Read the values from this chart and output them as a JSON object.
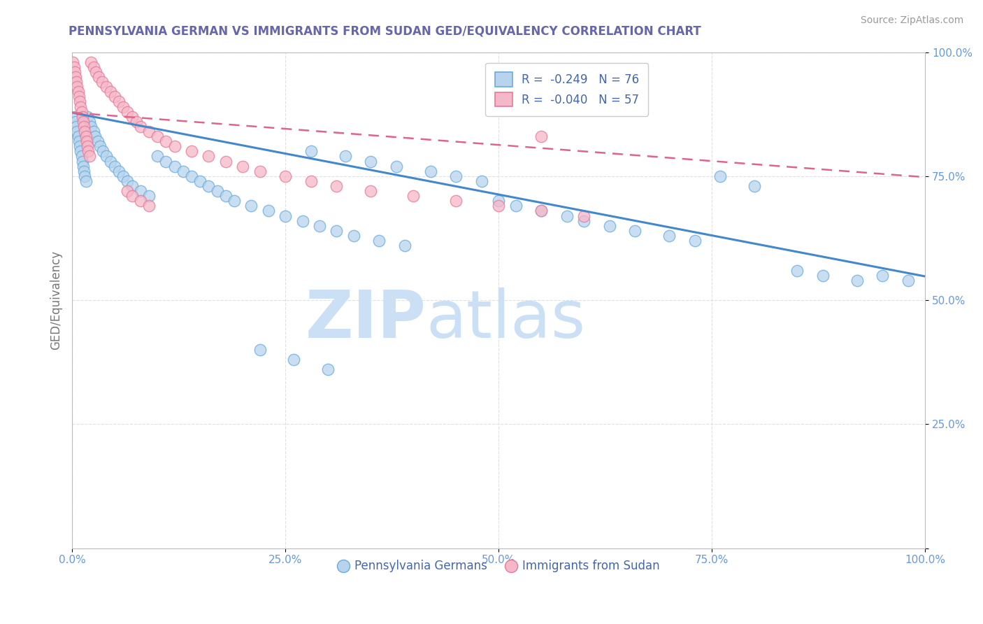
{
  "title": "PENNSYLVANIA GERMAN VS IMMIGRANTS FROM SUDAN GED/EQUIVALENCY CORRELATION CHART",
  "source": "Source: ZipAtlas.com",
  "ylabel": "GED/Equivalency",
  "watermark_zip": "ZIP",
  "watermark_atlas": "atlas",
  "xlim": [
    0,
    1.0
  ],
  "ylim": [
    0,
    1.0
  ],
  "xtick_vals": [
    0.0,
    0.25,
    0.5,
    0.75,
    1.0
  ],
  "xtick_labels": [
    "0.0%",
    "25.0%",
    "50.0%",
    "75.0%",
    "100.0%"
  ],
  "ytick_vals": [
    0.0,
    0.25,
    0.5,
    0.75,
    1.0
  ],
  "ytick_labels": [
    "",
    "25.0%",
    "50.0%",
    "75.0%",
    "100.0%"
  ],
  "blue_R": -0.249,
  "blue_N": 76,
  "pink_R": -0.04,
  "pink_N": 57,
  "blue_fill": "#b8d4ed",
  "pink_fill": "#f5b8c8",
  "blue_edge": "#6aabdd",
  "pink_edge": "#e87898",
  "blue_line_color": "#4488cc",
  "pink_line_color": "#dd6688",
  "blue_trend_start_y": 0.878,
  "blue_trend_end_y": 0.548,
  "pink_trend_start_y": 0.878,
  "pink_trend_end_y": 0.748,
  "title_color": "#6666aa",
  "axis_color": "#bbbbbb",
  "tick_color": "#6699dd",
  "grid_color": "#e0e0e0",
  "watermark_color": "#cce0f5",
  "legend_text_color": "#4466aa",
  "ylabel_color": "#777777",
  "source_color": "#999999",
  "blue_scatter_x": [
    0.003,
    0.004,
    0.005,
    0.006,
    0.007,
    0.008,
    0.009,
    0.01,
    0.011,
    0.012,
    0.013,
    0.014,
    0.015,
    0.016,
    0.018,
    0.02,
    0.022,
    0.025,
    0.027,
    0.03,
    0.033,
    0.036,
    0.04,
    0.045,
    0.05,
    0.055,
    0.06,
    0.065,
    0.07,
    0.08,
    0.09,
    0.1,
    0.11,
    0.12,
    0.13,
    0.14,
    0.15,
    0.16,
    0.17,
    0.18,
    0.19,
    0.21,
    0.23,
    0.25,
    0.27,
    0.29,
    0.31,
    0.33,
    0.36,
    0.39,
    0.28,
    0.32,
    0.35,
    0.38,
    0.42,
    0.45,
    0.48,
    0.5,
    0.52,
    0.55,
    0.58,
    0.6,
    0.63,
    0.66,
    0.7,
    0.73,
    0.76,
    0.8,
    0.85,
    0.88,
    0.92,
    0.95,
    0.98,
    0.22,
    0.26,
    0.3
  ],
  "blue_scatter_y": [
    0.87,
    0.86,
    0.85,
    0.84,
    0.83,
    0.82,
    0.81,
    0.8,
    0.79,
    0.78,
    0.77,
    0.76,
    0.75,
    0.74,
    0.87,
    0.86,
    0.85,
    0.84,
    0.83,
    0.82,
    0.81,
    0.8,
    0.79,
    0.78,
    0.77,
    0.76,
    0.75,
    0.74,
    0.73,
    0.72,
    0.71,
    0.79,
    0.78,
    0.77,
    0.76,
    0.75,
    0.74,
    0.73,
    0.72,
    0.71,
    0.7,
    0.69,
    0.68,
    0.67,
    0.66,
    0.65,
    0.64,
    0.63,
    0.62,
    0.61,
    0.8,
    0.79,
    0.78,
    0.77,
    0.76,
    0.75,
    0.74,
    0.7,
    0.69,
    0.68,
    0.67,
    0.66,
    0.65,
    0.64,
    0.63,
    0.62,
    0.75,
    0.73,
    0.56,
    0.55,
    0.54,
    0.55,
    0.54,
    0.4,
    0.38,
    0.36
  ],
  "pink_scatter_x": [
    0.001,
    0.002,
    0.003,
    0.004,
    0.005,
    0.006,
    0.007,
    0.008,
    0.009,
    0.01,
    0.011,
    0.012,
    0.013,
    0.014,
    0.015,
    0.016,
    0.017,
    0.018,
    0.019,
    0.02,
    0.022,
    0.025,
    0.028,
    0.031,
    0.035,
    0.04,
    0.045,
    0.05,
    0.055,
    0.06,
    0.065,
    0.07,
    0.075,
    0.08,
    0.09,
    0.1,
    0.11,
    0.12,
    0.14,
    0.16,
    0.18,
    0.2,
    0.22,
    0.25,
    0.28,
    0.31,
    0.35,
    0.4,
    0.45,
    0.5,
    0.55,
    0.6,
    0.065,
    0.07,
    0.08,
    0.09,
    0.55
  ],
  "pink_scatter_y": [
    0.98,
    0.97,
    0.96,
    0.95,
    0.94,
    0.93,
    0.92,
    0.91,
    0.9,
    0.89,
    0.88,
    0.87,
    0.86,
    0.85,
    0.84,
    0.83,
    0.82,
    0.81,
    0.8,
    0.79,
    0.98,
    0.97,
    0.96,
    0.95,
    0.94,
    0.93,
    0.92,
    0.91,
    0.9,
    0.89,
    0.88,
    0.87,
    0.86,
    0.85,
    0.84,
    0.83,
    0.82,
    0.81,
    0.8,
    0.79,
    0.78,
    0.77,
    0.76,
    0.75,
    0.74,
    0.73,
    0.72,
    0.71,
    0.7,
    0.69,
    0.68,
    0.67,
    0.72,
    0.71,
    0.7,
    0.69,
    0.83
  ]
}
